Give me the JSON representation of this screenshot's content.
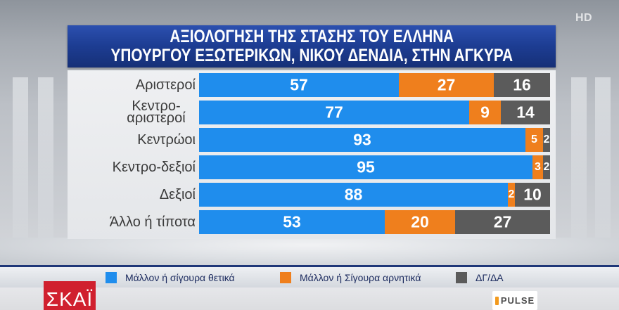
{
  "broadcast": {
    "channel_logo": "ΣΚΑΪ",
    "hd_badge": "HD",
    "pollster_logo": "PULSE"
  },
  "colors": {
    "title_background": "#1d3d93",
    "channel_red": "#d0202e"
  },
  "chart_data": {
    "type": "bar",
    "orientation": "horizontal",
    "stacked": true,
    "title": [
      "ΑΞΙΟΛΟΓΗΣΗ ΤΗΣ ΣΤΑΣΗΣ ΤΟΥ ΕΛΛΗΝΑ",
      "ΥΠΟΥΡΓΟΥ ΕΞΩΤΕΡΙΚΩΝ, ΝΙΚΟΥ ΔΕΝΔΙΑ, ΣΤΗΝ ΑΓΚΥΡΑ"
    ],
    "categories": [
      "Αριστεροί",
      "Κεντρο-αριστεροί",
      "Κεντρώοι",
      "Κεντρο-δεξιοί",
      "Δεξιοί",
      "Άλλο ή τίποτα"
    ],
    "series": [
      {
        "name": "Μάλλον ή σίγουρα θετικά",
        "color": "#1f8ded",
        "values": [
          57,
          77,
          93,
          95,
          88,
          53
        ]
      },
      {
        "name": "Μάλλον ή Σίγουρα αρνητικά",
        "color": "#ef7f1d",
        "values": [
          27,
          9,
          5,
          3,
          2,
          20
        ]
      },
      {
        "name": "ΔΓ/ΔΑ",
        "color": "#5b5b5b",
        "values": [
          16,
          14,
          2,
          2,
          10,
          27
        ]
      }
    ],
    "xlim": [
      0,
      100
    ],
    "data_labels": true,
    "grid": false,
    "legend": "bottom"
  }
}
